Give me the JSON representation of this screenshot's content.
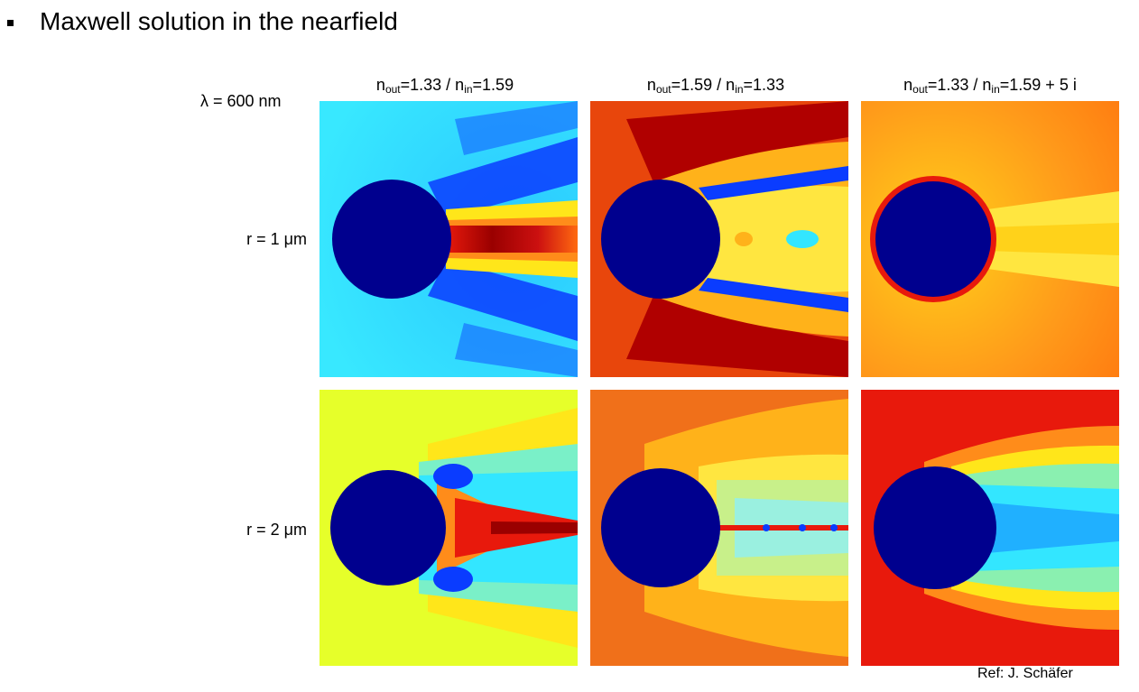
{
  "slide": {
    "title": "Maxwell solution in the nearfield",
    "wavelength_label": "λ = 600 nm",
    "reference": "Ref: J. Schäfer"
  },
  "columns": [
    {
      "n": "n",
      "sub1": "out",
      "mid": "=1.33 / n",
      "sub2": "in",
      "tail": "=1.59"
    },
    {
      "n": "n",
      "sub1": "out",
      "mid": "=1.59 / n",
      "sub2": "in",
      "tail": "=1.33"
    },
    {
      "n": "n",
      "sub1": "out",
      "mid": "=1.33 / n",
      "sub2": "in",
      "tail": "=1.59 + 5 i"
    }
  ],
  "rows": [
    {
      "label": "r = 1 μm"
    },
    {
      "label": "r = 2 μm"
    }
  ],
  "colors": {
    "sphere": "#00008e",
    "jet_dark_red": "#8b0000",
    "jet_red": "#e8190c",
    "jet_orange": "#ff8c1a",
    "jet_yellow": "#ffe61a",
    "jet_cyan": "#33e6ff",
    "jet_blue": "#0a3cff"
  }
}
